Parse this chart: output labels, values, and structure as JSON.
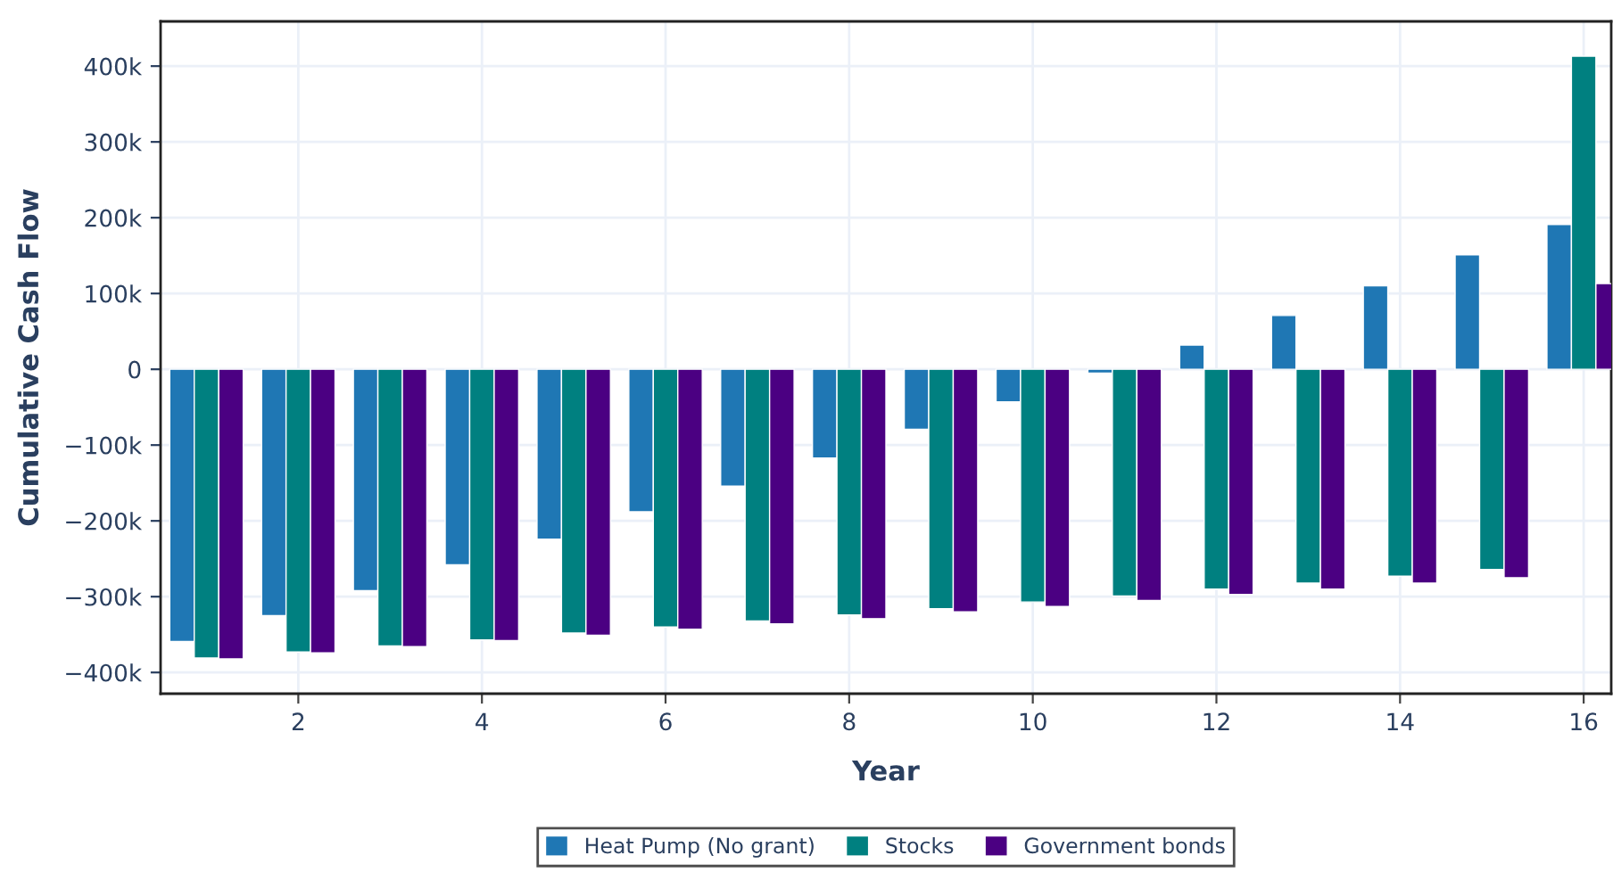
{
  "chart_data": {
    "type": "bar",
    "xlabel": "Year",
    "ylabel": "Cumulative Cash Flow",
    "x": [
      1,
      2,
      3,
      4,
      5,
      6,
      7,
      8,
      9,
      10,
      11,
      12,
      13,
      14,
      15,
      16
    ],
    "series": [
      {
        "name": "Heat Pump (No grant)",
        "color": "#1f77b4",
        "values": [
          -359000,
          -325000,
          -292000,
          -258000,
          -224000,
          -188000,
          -154000,
          -117000,
          -79000,
          -43000,
          -5000,
          32000,
          71000,
          110000,
          151000,
          191000
        ]
      },
      {
        "name": "Stocks",
        "color": "#008080",
        "values": [
          -381000,
          -373000,
          -365000,
          -357000,
          -348000,
          -340000,
          -332000,
          -324000,
          -316000,
          -307000,
          -299000,
          -290000,
          -282000,
          -273000,
          -264000,
          413000
        ]
      },
      {
        "name": "Government bonds",
        "color": "#4b0082",
        "values": [
          -382000,
          -374000,
          -366000,
          -358000,
          -351000,
          -343000,
          -336000,
          -329000,
          -320000,
          -313000,
          -305000,
          -297000,
          -290000,
          -282000,
          -275000,
          113000
        ]
      }
    ],
    "xlim": [
      0.5,
      16.3
    ],
    "xticks": [
      2,
      4,
      6,
      8,
      10,
      12,
      14,
      16
    ],
    "ylim": [
      -428000,
      459000
    ],
    "yticks": [
      {
        "value": -400000,
        "label": "−400k"
      },
      {
        "value": -300000,
        "label": "−300k"
      },
      {
        "value": -200000,
        "label": "−200k"
      },
      {
        "value": -100000,
        "label": "−100k"
      },
      {
        "value": 0,
        "label": "0"
      },
      {
        "value": 100000,
        "label": "100k"
      },
      {
        "value": 200000,
        "label": "200k"
      },
      {
        "value": 300000,
        "label": "300k"
      },
      {
        "value": 400000,
        "label": "400k"
      }
    ],
    "grid": true,
    "legend": "bottom"
  }
}
